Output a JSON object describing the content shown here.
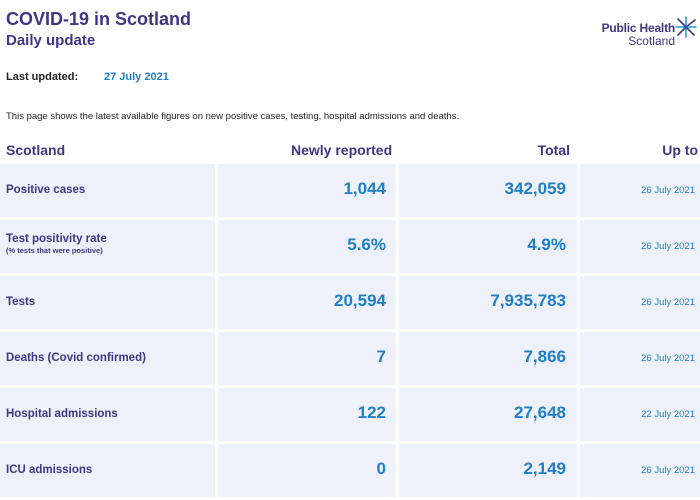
{
  "header": {
    "title": "COVID-19 in Scotland",
    "subtitle": "Daily update"
  },
  "logo": {
    "line1": "Public Health",
    "line2": "Scotland",
    "icon": "star-burst-icon",
    "color": "#3f3685",
    "accent": "#1e9bd7"
  },
  "updated": {
    "label": "Last updated:",
    "date": "27 July 2021"
  },
  "intro": "This page shows the latest available figures on new positive cases, testing, hospital admissions and deaths.",
  "table": {
    "columns": [
      "Scotland",
      "Newly reported",
      "Total",
      "Up to"
    ],
    "rows": [
      {
        "label": "Positive cases",
        "sublabel": "",
        "newly_reported": "1,044",
        "total": "342,059",
        "up_to": "26 July 2021"
      },
      {
        "label": "Test positivity rate",
        "sublabel": "(% tests that were positive)",
        "newly_reported": "5.6%",
        "total": "4.9%",
        "up_to": "26 July 2021"
      },
      {
        "label": "Tests",
        "sublabel": "",
        "newly_reported": "20,594",
        "total": "7,935,783",
        "up_to": "26 July 2021"
      },
      {
        "label": "Deaths (Covid confirmed)",
        "sublabel": "",
        "newly_reported": "7",
        "total": "7,866",
        "up_to": "26 July 2021"
      },
      {
        "label": "Hospital admissions",
        "sublabel": "",
        "newly_reported": "122",
        "total": "27,648",
        "up_to": "22 July 2021"
      },
      {
        "label": "ICU admissions",
        "sublabel": "",
        "newly_reported": "0",
        "total": "2,149",
        "up_to": "26 July 2021"
      }
    ]
  },
  "colors": {
    "heading": "#3f3685",
    "value": "#1e7ec8",
    "cell_bg": "#eef1f9"
  }
}
